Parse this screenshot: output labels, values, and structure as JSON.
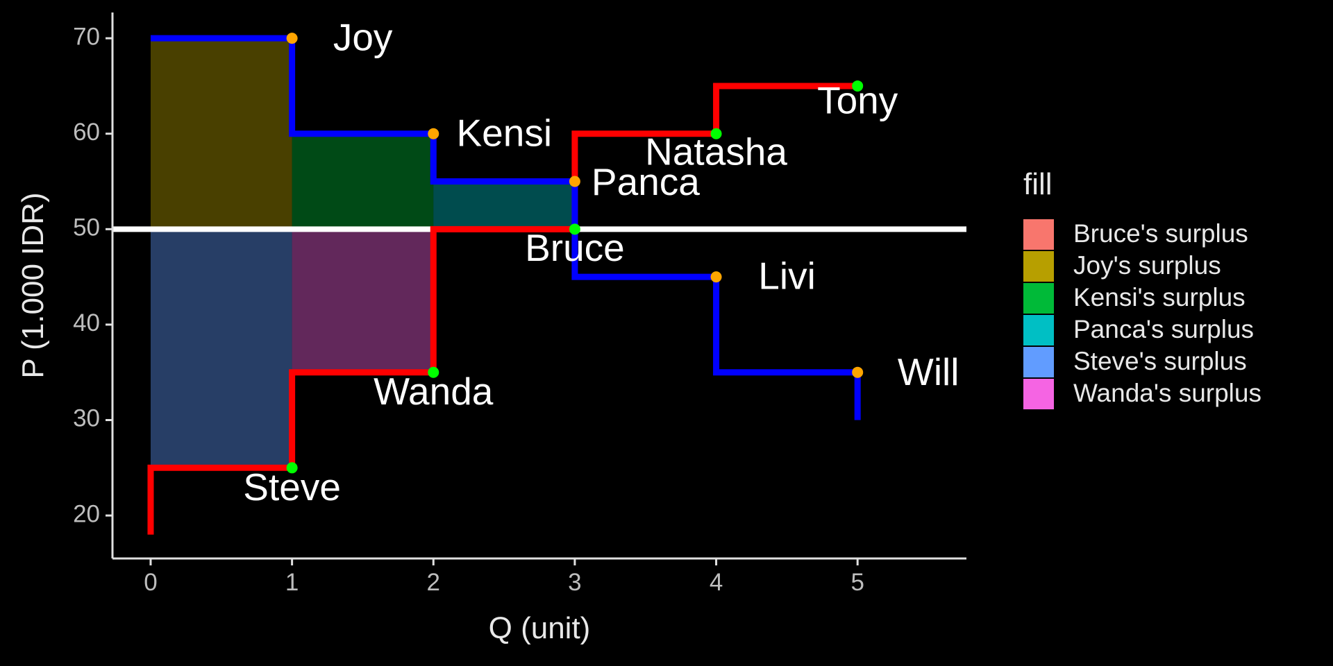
{
  "chart_data": {
    "type": "line",
    "title": "",
    "xlabel": "Q (unit)",
    "ylabel": "P (1.000 IDR)",
    "xlim": [
      -0.27,
      5.77
    ],
    "ylim": [
      15.5,
      72.7
    ],
    "x_ticks": [
      0,
      1,
      2,
      3,
      4,
      5
    ],
    "y_ticks": [
      20,
      30,
      40,
      50,
      60,
      70
    ],
    "x_tick_labels": [
      "0",
      "1",
      "2",
      "3",
      "4",
      "5"
    ],
    "y_tick_labels": [
      "20",
      "30",
      "40",
      "50",
      "60",
      "70"
    ],
    "grid": false,
    "equilibrium_price": 50,
    "demand_color": "#0000ff",
    "supply_color": "#ff0000",
    "equilibrium_line_color": "#ffffff",
    "demand": {
      "line_points": [
        [
          0,
          70
        ],
        [
          1,
          70
        ],
        [
          1,
          60
        ],
        [
          2,
          60
        ],
        [
          2,
          55
        ],
        [
          3,
          55
        ],
        [
          3,
          45
        ],
        [
          4,
          45
        ],
        [
          4,
          35
        ],
        [
          5,
          35
        ],
        [
          5,
          30
        ]
      ],
      "point_color": "#ffa500",
      "points": [
        {
          "name": "Joy",
          "q": 1,
          "p": 70
        },
        {
          "name": "Kensi",
          "q": 2,
          "p": 60
        },
        {
          "name": "Panca",
          "q": 3,
          "p": 55
        },
        {
          "name": "Livi",
          "q": 4,
          "p": 45
        },
        {
          "name": "Will",
          "q": 5,
          "p": 35
        }
      ]
    },
    "supply": {
      "line_points": [
        [
          0,
          18
        ],
        [
          0,
          25
        ],
        [
          1,
          25
        ],
        [
          1,
          35
        ],
        [
          2,
          35
        ],
        [
          2,
          50
        ],
        [
          3,
          50
        ],
        [
          3,
          60
        ],
        [
          4,
          60
        ],
        [
          4,
          65
        ],
        [
          5,
          65
        ]
      ],
      "point_color": "#00ff00",
      "points": [
        {
          "name": "Steve",
          "q": 1,
          "p": 25
        },
        {
          "name": "Wanda",
          "q": 2,
          "p": 35
        },
        {
          "name": "Bruce",
          "q": 3,
          "p": 50
        },
        {
          "name": "Natasha",
          "q": 4,
          "p": 60
        },
        {
          "name": "Tony",
          "q": 5,
          "p": 65
        }
      ]
    },
    "surplus_areas": [
      {
        "name": "Joy's surplus",
        "color": "#b79f00",
        "x0": 0,
        "x1": 1,
        "y0": 50,
        "y1": 70
      },
      {
        "name": "Kensi's surplus",
        "color": "#00ba38",
        "x0": 1,
        "x1": 2,
        "y0": 50,
        "y1": 60
      },
      {
        "name": "Panca's surplus",
        "color": "#00bfc4",
        "x0": 2,
        "x1": 3,
        "y0": 50,
        "y1": 55
      },
      {
        "name": "Steve's surplus",
        "color": "#619cff",
        "x0": 0,
        "x1": 1,
        "y0": 25,
        "y1": 50
      },
      {
        "name": "Wanda's surplus",
        "color": "#f564e3",
        "x0": 1,
        "x1": 2,
        "y0": 35,
        "y1": 50
      },
      {
        "name": "Bruce's surplus",
        "color": "#f8766d",
        "x0": 2,
        "x1": 3,
        "y0": 50,
        "y1": 50
      }
    ],
    "legend": {
      "title": "fill",
      "position": "right",
      "items": [
        {
          "label": "Bruce's surplus",
          "color": "#f8766d"
        },
        {
          "label": "Joy's surplus",
          "color": "#b79f00"
        },
        {
          "label": "Kensi's surplus",
          "color": "#00ba38"
        },
        {
          "label": "Panca's surplus",
          "color": "#00bfc4"
        },
        {
          "label": "Steve's surplus",
          "color": "#619cff"
        },
        {
          "label": "Wanda's surplus",
          "color": "#f564e3"
        }
      ]
    }
  }
}
